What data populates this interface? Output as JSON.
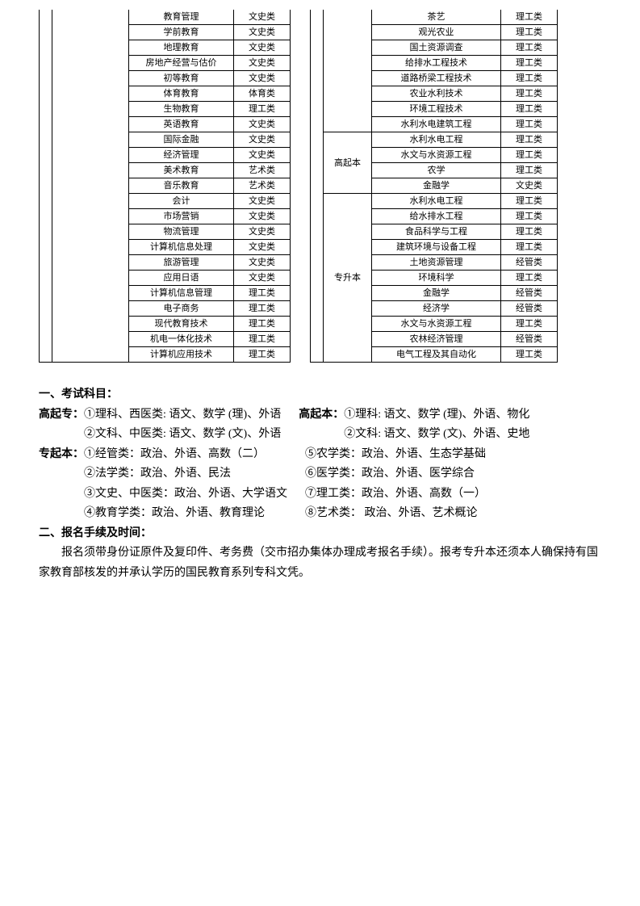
{
  "tableLeft": {
    "rows": [
      {
        "major": "教育管理",
        "cat": "文史类"
      },
      {
        "major": "学前教育",
        "cat": "文史类"
      },
      {
        "major": "地理教育",
        "cat": "文史类"
      },
      {
        "major": "房地产经营与估价",
        "cat": "文史类"
      },
      {
        "major": "初等教育",
        "cat": "文史类"
      },
      {
        "major": "体育教育",
        "cat": "体育类"
      },
      {
        "major": "生物教育",
        "cat": "理工类"
      },
      {
        "major": "英语教育",
        "cat": "文史类"
      },
      {
        "major": "国际金融",
        "cat": "文史类"
      },
      {
        "major": "经济管理",
        "cat": "文史类"
      },
      {
        "major": "美术教育",
        "cat": "艺术类"
      },
      {
        "major": "音乐教育",
        "cat": "艺术类"
      },
      {
        "major": "会计",
        "cat": "文史类"
      },
      {
        "major": "市场营销",
        "cat": "文史类"
      },
      {
        "major": "物流管理",
        "cat": "文史类"
      },
      {
        "major": "计算机信息处理",
        "cat": "文史类"
      },
      {
        "major": "旅游管理",
        "cat": "文史类"
      },
      {
        "major": "应用日语",
        "cat": "文史类"
      },
      {
        "major": "计算机信息管理",
        "cat": "理工类"
      },
      {
        "major": "电子商务",
        "cat": "理工类"
      },
      {
        "major": "现代教育技术",
        "cat": "理工类"
      },
      {
        "major": "机电一体化技术",
        "cat": "理工类"
      },
      {
        "major": "计算机应用技术",
        "cat": "理工类"
      }
    ]
  },
  "tableRight": {
    "block1": {
      "rows": [
        {
          "major": "茶艺",
          "cat": "理工类"
        },
        {
          "major": "观光农业",
          "cat": "理工类"
        },
        {
          "major": "国土资源调查",
          "cat": "理工类"
        },
        {
          "major": "给排水工程技术",
          "cat": "理工类"
        },
        {
          "major": "道路桥梁工程技术",
          "cat": "理工类"
        },
        {
          "major": "农业水利技术",
          "cat": "理工类"
        },
        {
          "major": "环境工程技术",
          "cat": "理工类"
        },
        {
          "major": "水利水电建筑工程",
          "cat": "理工类"
        }
      ]
    },
    "block2": {
      "level": "高起本",
      "rows": [
        {
          "major": "水利水电工程",
          "cat": "理工类"
        },
        {
          "major": "水文与水资源工程",
          "cat": "理工类"
        },
        {
          "major": "农学",
          "cat": "理工类"
        },
        {
          "major": "金融学",
          "cat": "文史类"
        }
      ]
    },
    "block3": {
      "level": "专升本",
      "rows": [
        {
          "major": "水利水电工程",
          "cat": "理工类"
        },
        {
          "major": "给水排水工程",
          "cat": "理工类"
        },
        {
          "major": "食品科学与工程",
          "cat": "理工类"
        },
        {
          "major": "建筑环境与设备工程",
          "cat": "理工类"
        },
        {
          "major": "土地资源管理",
          "cat": "经管类"
        },
        {
          "major": "环境科学",
          "cat": "理工类"
        },
        {
          "major": "金融学",
          "cat": "经管类"
        },
        {
          "major": "经济学",
          "cat": "经管类"
        },
        {
          "major": "水文与水资源工程",
          "cat": "理工类"
        },
        {
          "major": "农林经济管理",
          "cat": "经管类"
        },
        {
          "major": "电气工程及其自动化",
          "cat": "理工类"
        }
      ]
    }
  },
  "text": {
    "s1": "一、考试科目：",
    "gqz": "高起专：",
    "gqz1": "①理科、西医类: 语文、数学 (理)、外语",
    "gqz2": "②文科、中医类: 语文、数学 (文)、外语",
    "gqb": "高起本：",
    "gqb1": "①理科: 语文、数学 (理)、外语、物化",
    "gqb2": "②文科: 语文、数学 (文)、外语、史地",
    "zqb": "专起本：",
    "zqb1": "①经管类：政治、外语、高数（二）",
    "zqb2": "②法学类：政治、外语、民法",
    "zqb3": "③文史、中医类：政治、外语、大学语文",
    "zqb4": "④教育学类：政治、外语、教育理论",
    "zqb5": "⑤农学类：政治、外语、生态学基础",
    "zqb6": "⑥医学类：政治、外语、医学综合",
    "zqb7": "⑦理工类：政治、外语、高数（一）",
    "zqb8": "⑧艺术类： 政治、外语、艺术概论",
    "s2": "二、报名手续及时间：",
    "p2": "报名须带身份证原件及复印件、考务费（交市招办集体办理成考报名手续）。报考专升本还须本人确保持有国家教育部核发的并承认学历的国民教育系列专科文凭。"
  }
}
